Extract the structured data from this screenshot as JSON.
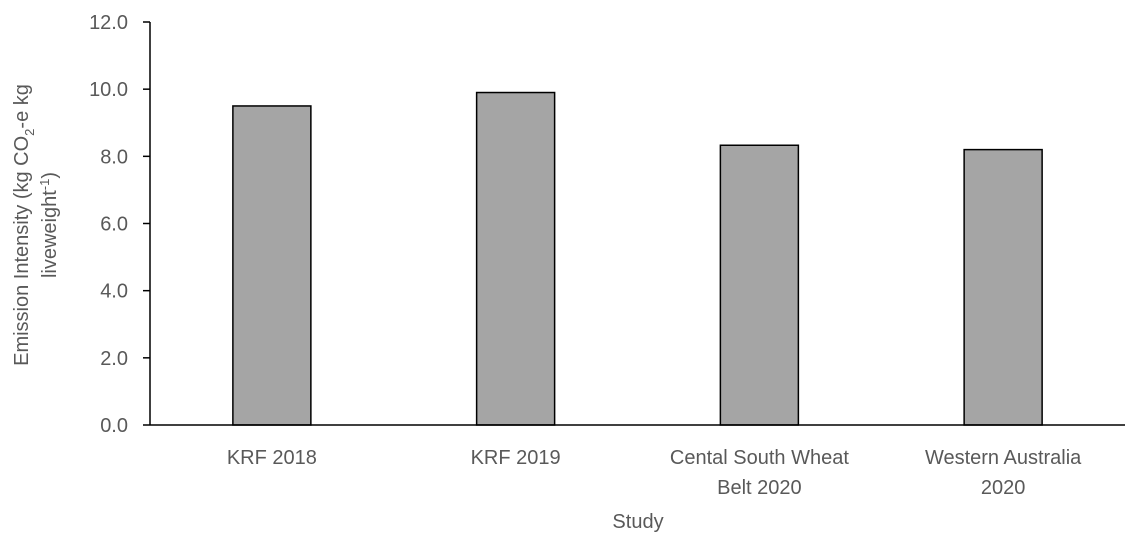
{
  "chart_data": {
    "type": "bar",
    "categories": [
      [
        "KRF 2018"
      ],
      [
        "KRF 2019"
      ],
      [
        "Cental South Wheat",
        "Belt 2020"
      ],
      [
        "Western Australia",
        "2020"
      ]
    ],
    "values": [
      9.5,
      9.9,
      8.33,
      8.2
    ],
    "xlabel": "Study",
    "ylabel": {
      "line1_prefix": "Emission Intensity (kg CO",
      "line1_sub": "2",
      "line1_suffix": "-e kg",
      "line2_prefix": "liveweight",
      "line2_sup": "-1",
      "line2_suffix": ")"
    },
    "ylim": [
      0,
      12
    ],
    "yticks": [
      "0.0",
      "2.0",
      "4.0",
      "6.0",
      "8.0",
      "10.0",
      "12.0"
    ],
    "grid": false,
    "legend": "none",
    "colors": {
      "bar_fill": "#a5a5a5",
      "bar_stroke": "#000000",
      "axis": "#000000",
      "text": "#595959"
    }
  }
}
